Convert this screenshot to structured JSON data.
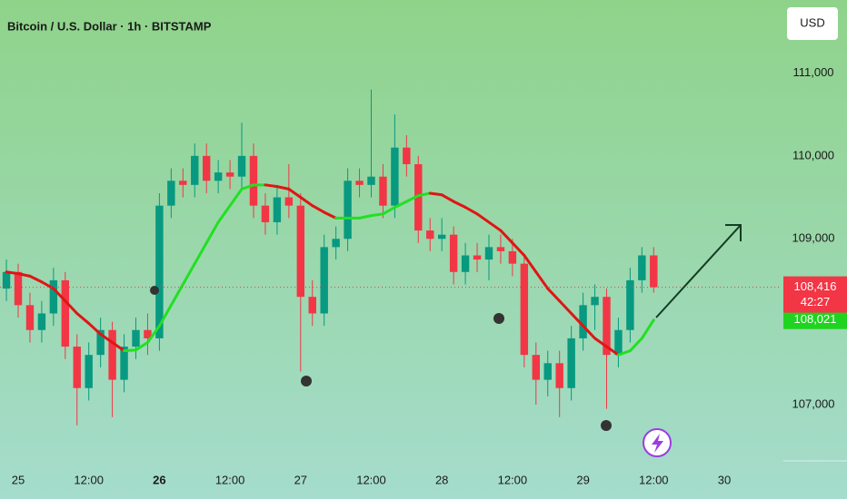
{
  "chart_data": {
    "type": "candlestick",
    "title": "Bitcoin / U.S. Dollar · 1h · BITSTAMP",
    "currency": "USD",
    "x": [
      -2,
      0,
      2,
      4,
      6,
      8,
      10,
      12,
      14,
      16,
      18,
      20,
      22,
      24,
      26,
      28,
      30,
      32,
      34,
      36,
      38,
      40,
      42,
      44,
      46,
      48,
      50,
      52,
      54,
      56,
      58,
      60,
      62,
      64,
      66,
      68,
      70,
      72,
      74,
      76,
      78,
      80,
      82,
      84,
      86,
      88,
      90,
      92,
      94,
      96,
      98,
      100,
      102,
      104,
      106,
      108
    ],
    "open": [
      108400,
      108600,
      108200,
      107900,
      108100,
      108500,
      107700,
      107200,
      107600,
      107900,
      107300,
      107700,
      107900,
      107800,
      109400,
      109700,
      109650,
      110000,
      109700,
      109800,
      109750,
      110000,
      109400,
      109200,
      109500,
      109400,
      108300,
      108100,
      108900,
      109000,
      109700,
      109650,
      109750,
      109400,
      110100,
      109900,
      109100,
      109000,
      109050,
      108600,
      108800,
      108750,
      108900,
      108850,
      108700,
      107600,
      107300,
      107500,
      107200,
      107800,
      108200,
      108300,
      107600,
      107900,
      108500,
      108800
    ],
    "high": [
      108750,
      108700,
      108350,
      108250,
      108650,
      108600,
      107850,
      107750,
      108050,
      108000,
      107850,
      108050,
      108100,
      109550,
      109850,
      109850,
      110150,
      110150,
      109950,
      109950,
      110400,
      110150,
      109550,
      109650,
      109900,
      109550,
      108500,
      109050,
      109150,
      109850,
      109850,
      110800,
      109900,
      110500,
      110250,
      110000,
      109250,
      109250,
      109150,
      108950,
      108950,
      109050,
      109050,
      109000,
      108800,
      107750,
      107650,
      107650,
      107950,
      108350,
      108450,
      108400,
      108050,
      108650,
      108900,
      108900
    ],
    "low": [
      108250,
      108050,
      107750,
      107750,
      107950,
      107550,
      106750,
      107050,
      107450,
      106850,
      107150,
      107550,
      107600,
      107650,
      109250,
      109500,
      109500,
      109550,
      109550,
      109600,
      109600,
      109250,
      109050,
      109050,
      109250,
      107400,
      107950,
      107950,
      108750,
      108850,
      109500,
      109500,
      109250,
      109250,
      109750,
      108950,
      108850,
      108850,
      108450,
      108450,
      108600,
      108500,
      108700,
      108550,
      107450,
      107000,
      107100,
      106850,
      107050,
      107650,
      107900,
      106950,
      107450,
      107750,
      108350,
      108350
    ],
    "close": [
      108600,
      108200,
      107900,
      108100,
      108500,
      107700,
      107200,
      107600,
      107900,
      107300,
      107700,
      107900,
      107800,
      109400,
      109700,
      109650,
      110000,
      109700,
      109800,
      109750,
      110000,
      109400,
      109200,
      109500,
      109400,
      108300,
      108100,
      108900,
      109000,
      109700,
      109650,
      109750,
      109400,
      110100,
      109900,
      109100,
      109000,
      109050,
      108600,
      108800,
      108750,
      108900,
      108850,
      108700,
      107600,
      107300,
      107500,
      107200,
      107800,
      108200,
      108300,
      107600,
      107900,
      108500,
      108800,
      108416
    ],
    "up_color": "#089981",
    "down_color": "#f23645",
    "last_label": "108,416",
    "countdown": "42:27",
    "ma": {
      "values": [
        108600,
        108580,
        108550,
        108480,
        108400,
        108250,
        108100,
        107980,
        107850,
        107750,
        107650,
        107660,
        107750,
        107950,
        108200,
        108450,
        108700,
        108950,
        109200,
        109400,
        109600,
        109650,
        109650,
        109630,
        109600,
        109500,
        109400,
        109320,
        109250,
        109250,
        109250,
        109280,
        109300,
        109380,
        109450,
        109520,
        109550,
        109530,
        109450,
        109380,
        109300,
        109200,
        109100,
        108950,
        108800,
        108600,
        108400,
        108250,
        108100,
        107950,
        107800,
        107700,
        107600,
        107650,
        107800,
        108021
      ],
      "up_color": "#22e022",
      "down_color": "#e01515",
      "last_label": "108,021"
    },
    "xlim": [
      -3.09,
      128.96
    ],
    "xticks": [
      {
        "value": 0,
        "label": "25"
      },
      {
        "value": 12,
        "label": "12:00"
      },
      {
        "value": 24,
        "label": "26"
      },
      {
        "value": 36,
        "label": "12:00"
      },
      {
        "value": 48,
        "label": "27"
      },
      {
        "value": 60,
        "label": "12:00"
      },
      {
        "value": 72,
        "label": "28"
      },
      {
        "value": 84,
        "label": "12:00"
      },
      {
        "value": 96,
        "label": "29"
      },
      {
        "value": 108,
        "label": "12:00"
      },
      {
        "value": 120,
        "label": "30"
      }
    ],
    "ylim": [
      106300,
      111880
    ],
    "yticks": [
      {
        "value": 107000,
        "label": "107,000"
      },
      {
        "value": 109000,
        "label": "109,000"
      },
      {
        "value": 110000,
        "label": "110,000"
      },
      {
        "value": 111000,
        "label": "111,000"
      }
    ]
  }
}
